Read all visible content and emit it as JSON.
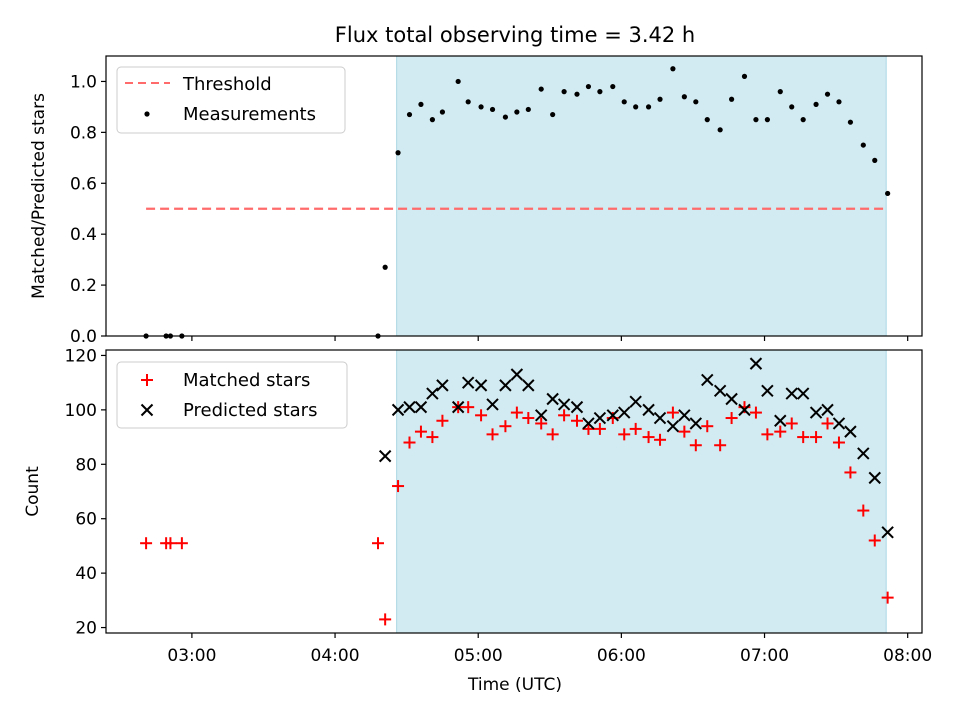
{
  "chart_data": {
    "title": "Flux total observing time = 3.42 h",
    "xlabel": "Time (UTC)",
    "x_ticks": [
      {
        "value": 3.0,
        "label": "03:00"
      },
      {
        "value": 4.0,
        "label": "04:00"
      },
      {
        "value": 5.0,
        "label": "05:00"
      },
      {
        "value": 6.0,
        "label": "06:00"
      },
      {
        "value": 7.0,
        "label": "07:00"
      },
      {
        "value": 8.0,
        "label": "08:00"
      }
    ],
    "xlim": [
      2.4,
      8.1
    ],
    "shaded_interval": {
      "x_start": 4.43,
      "x_end": 7.85,
      "color": "#add8e6"
    },
    "panels": [
      {
        "type": "scatter",
        "ylabel": "Matched/Predicted stars",
        "ylim": [
          0,
          1.1
        ],
        "y_ticks": [
          {
            "value": 0.0,
            "label": "0.0"
          },
          {
            "value": 0.2,
            "label": "0.2"
          },
          {
            "value": 0.4,
            "label": "0.4"
          },
          {
            "value": 0.6,
            "label": "0.6"
          },
          {
            "value": 0.8,
            "label": "0.8"
          },
          {
            "value": 1.0,
            "label": "1.0"
          }
        ],
        "legend_position": "upper-left",
        "threshold": {
          "name": "Threshold",
          "value": 0.5,
          "x_start": 2.68,
          "x_end": 7.86,
          "color": "#ff6b6b"
        },
        "series": [
          {
            "name": "Measurements",
            "marker": "dot",
            "color": "#000000",
            "x": [
              2.68,
              2.82,
              2.85,
              2.93,
              4.3,
              4.35,
              4.44,
              4.52,
              4.6,
              4.68,
              4.75,
              4.86,
              4.93,
              5.02,
              5.1,
              5.19,
              5.27,
              5.35,
              5.44,
              5.52,
              5.6,
              5.69,
              5.77,
              5.85,
              5.94,
              6.02,
              6.1,
              6.19,
              6.27,
              6.36,
              6.44,
              6.52,
              6.6,
              6.69,
              6.77,
              6.86,
              6.94,
              7.02,
              7.11,
              7.19,
              7.27,
              7.36,
              7.44,
              7.52,
              7.6,
              7.69,
              7.77,
              7.86
            ],
            "y": [
              0,
              0,
              0,
              0,
              0,
              0.27,
              0.72,
              0.87,
              0.91,
              0.85,
              0.88,
              1.0,
              0.92,
              0.9,
              0.89,
              0.86,
              0.88,
              0.89,
              0.97,
              0.87,
              0.96,
              0.95,
              0.98,
              0.96,
              0.98,
              0.92,
              0.9,
              0.9,
              0.93,
              1.05,
              0.94,
              0.92,
              0.85,
              0.81,
              0.93,
              1.02,
              0.85,
              0.85,
              0.96,
              0.9,
              0.85,
              0.91,
              0.95,
              0.92,
              0.84,
              0.75,
              0.69,
              0.56
            ]
          }
        ]
      },
      {
        "type": "scatter",
        "ylabel": "Count",
        "ylim": [
          18,
          122
        ],
        "y_ticks": [
          {
            "value": 20,
            "label": "20"
          },
          {
            "value": 40,
            "label": "40"
          },
          {
            "value": 60,
            "label": "60"
          },
          {
            "value": 80,
            "label": "80"
          },
          {
            "value": 100,
            "label": "100"
          },
          {
            "value": 120,
            "label": "120"
          }
        ],
        "legend_position": "upper-left",
        "series": [
          {
            "name": "Matched stars",
            "marker": "plus",
            "color": "#ff0000",
            "x": [
              2.68,
              2.82,
              2.85,
              2.93,
              4.3,
              4.35,
              4.44,
              4.52,
              4.6,
              4.68,
              4.75,
              4.86,
              4.93,
              5.02,
              5.1,
              5.19,
              5.27,
              5.35,
              5.44,
              5.52,
              5.6,
              5.69,
              5.77,
              5.85,
              5.94,
              6.02,
              6.1,
              6.19,
              6.27,
              6.36,
              6.44,
              6.52,
              6.6,
              6.69,
              6.77,
              6.86,
              6.94,
              7.02,
              7.11,
              7.19,
              7.27,
              7.36,
              7.44,
              7.52,
              7.6,
              7.69,
              7.77,
              7.86
            ],
            "y": [
              51,
              51,
              51,
              51,
              51,
              23,
              72,
              88,
              92,
              90,
              96,
              101,
              101,
              98,
              91,
              94,
              99,
              97,
              95,
              91,
              98,
              96,
              93,
              93,
              97,
              91,
              93,
              90,
              89,
              99,
              92,
              87,
              94,
              87,
              97,
              101,
              99,
              91,
              92,
              95,
              90,
              90,
              95,
              88,
              77,
              63,
              52,
              31
            ]
          },
          {
            "name": "Predicted stars",
            "marker": "x",
            "color": "#000000",
            "x": [
              4.35,
              4.44,
              4.52,
              4.6,
              4.68,
              4.75,
              4.86,
              4.93,
              5.02,
              5.1,
              5.19,
              5.27,
              5.35,
              5.44,
              5.52,
              5.6,
              5.69,
              5.77,
              5.85,
              5.94,
              6.02,
              6.1,
              6.19,
              6.27,
              6.36,
              6.44,
              6.52,
              6.6,
              6.69,
              6.77,
              6.86,
              6.94,
              7.02,
              7.11,
              7.19,
              7.27,
              7.36,
              7.44,
              7.52,
              7.6,
              7.69,
              7.77,
              7.86
            ],
            "y": [
              83,
              100,
              101,
              101,
              106,
              109,
              101,
              110,
              109,
              102,
              109,
              113,
              109,
              98,
              104,
              102,
              101,
              95,
              97,
              98,
              99,
              103,
              100,
              97,
              94,
              98,
              95,
              111,
              107,
              104,
              100,
              117,
              107,
              96,
              106,
              106,
              99,
              100,
              95,
              92,
              84,
              75,
              55
            ]
          }
        ]
      }
    ]
  }
}
